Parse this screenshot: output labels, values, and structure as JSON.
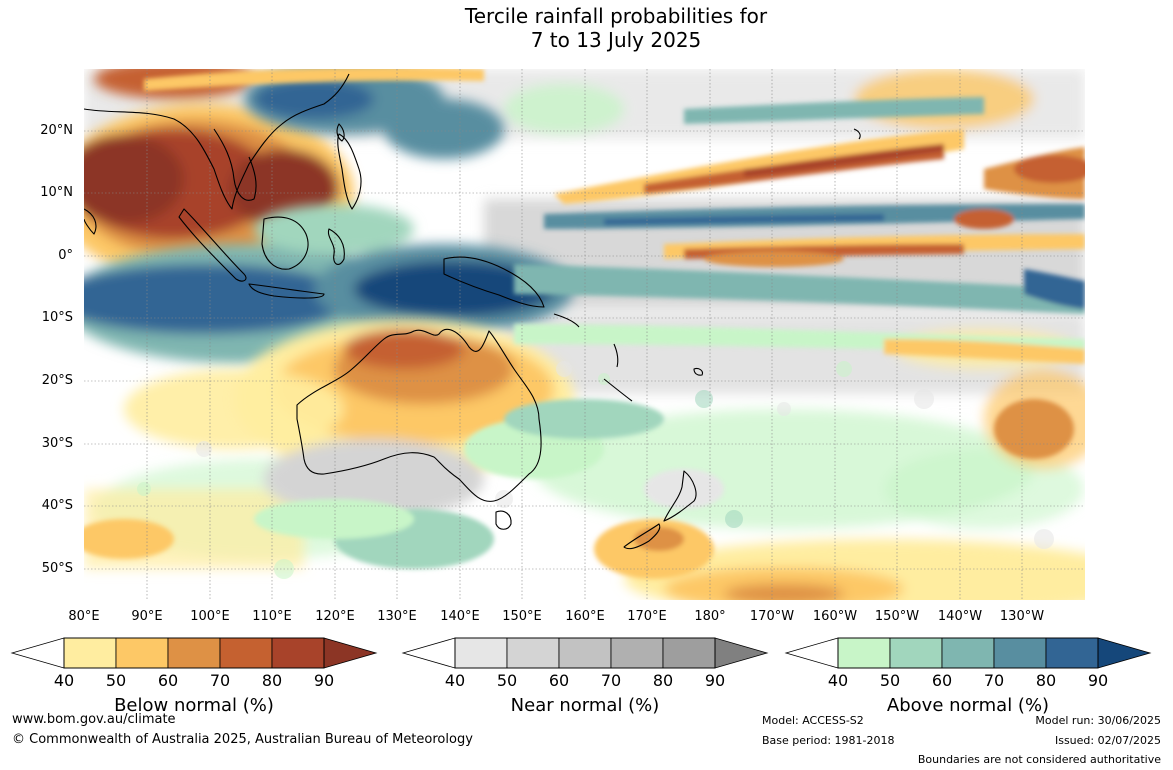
{
  "title": {
    "line1": "Tercile rainfall probabilities for",
    "line2": "7 to 13 July 2025"
  },
  "map": {
    "lat_labels": [
      "20°N",
      "10°N",
      "0°",
      "10°S",
      "20°S",
      "30°S",
      "40°S",
      "50°S"
    ],
    "lon_labels": [
      "80°E",
      "90°E",
      "100°E",
      "110°E",
      "120°E",
      "130°E",
      "140°E",
      "150°E",
      "160°E",
      "170°E",
      "180°",
      "170°W",
      "160°W",
      "150°W",
      "140°W",
      "130°W"
    ],
    "colors": {
      "below": [
        "#ffeda0",
        "#fdc866",
        "#de9145",
        "#c56130",
        "#a8432a",
        "#8c3525"
      ],
      "near": [
        "#e6e6e6",
        "#d4d4d4",
        "#c2c2c2",
        "#b0b0b0",
        "#9e9e9e",
        "#808080"
      ],
      "above": [
        "#c8f5c8",
        "#a1d6bd",
        "#7fb6b0",
        "#588ea0",
        "#326594",
        "#15477a"
      ]
    }
  },
  "legends": [
    {
      "id": "below",
      "title": "Below normal (%)",
      "ticks": [
        "40",
        "50",
        "60",
        "70",
        "80",
        "90"
      ]
    },
    {
      "id": "near",
      "title": "Near normal (%)",
      "ticks": [
        "40",
        "50",
        "60",
        "70",
        "80",
        "90"
      ]
    },
    {
      "id": "above",
      "title": "Above normal (%)",
      "ticks": [
        "40",
        "50",
        "60",
        "70",
        "80",
        "90"
      ]
    }
  ],
  "footer": {
    "website": "www.bom.gov.au/climate",
    "copyright": "© Commonwealth of Australia 2025, Australian Bureau of Meteorology",
    "model": "Model: ACCESS-S2",
    "base_period": "Base period: 1981-2018",
    "model_run": "Model run: 30/06/2025",
    "issued": "Issued: 02/07/2025",
    "disclaimer": "Boundaries are not considered authoritative"
  }
}
